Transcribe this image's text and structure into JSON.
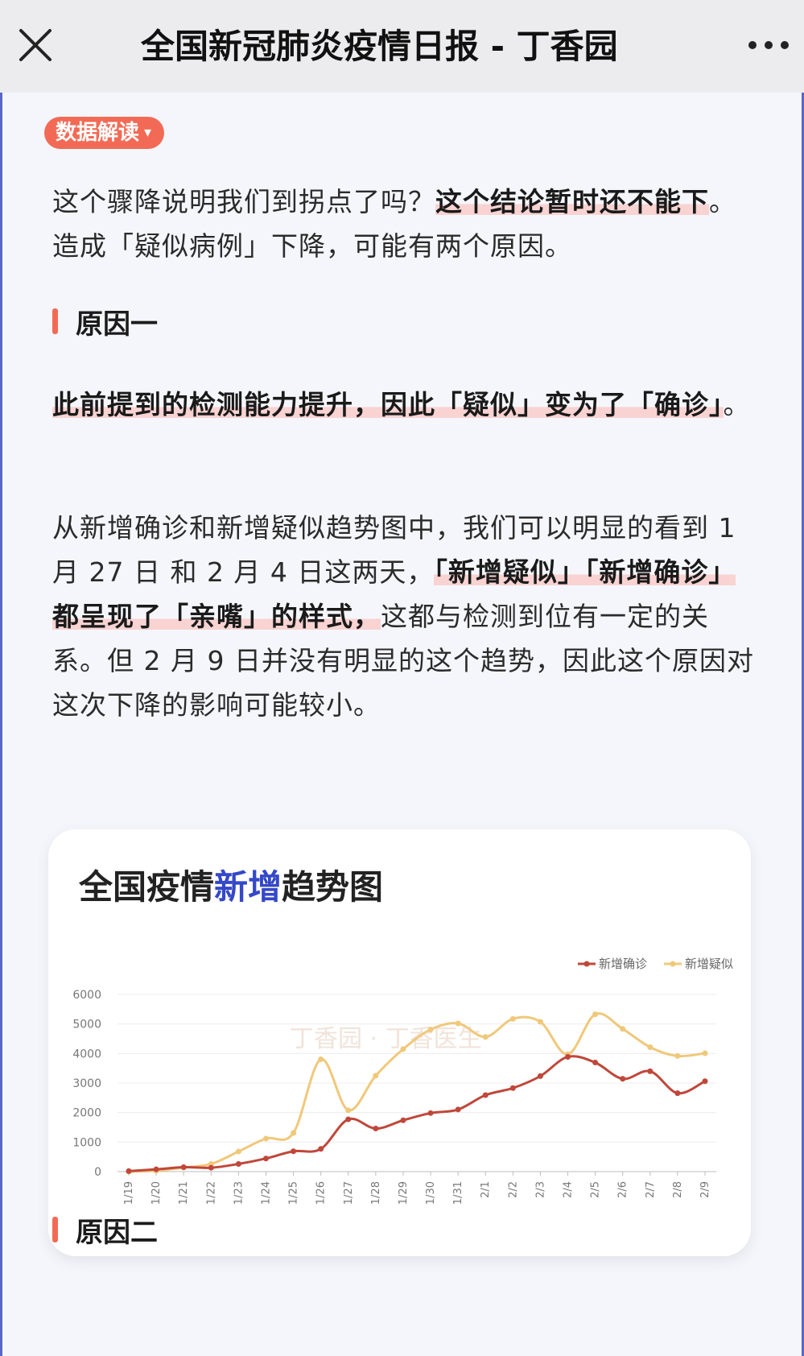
{
  "topbar": {
    "title": "全国新冠肺炎疫情日报 - 丁香园",
    "close_icon": "close-icon",
    "more_icon": "more-icon"
  },
  "article": {
    "tag": "数据解读",
    "p1": {
      "normal1": "这个骤降说明我们到拐点了吗？",
      "bold1": "这个结论暂时还不能下",
      "normal2": "。造成「疑似病例」下降，可能有两个原因。"
    },
    "section1": "原因一",
    "p2": {
      "bold1": "此前提到的检测能力提升，因此「疑似」变为了「确诊」",
      "normal1": "。"
    },
    "p3": {
      "normal1": "从新增确诊和新增疑似趋势图中，我们可以明显的看到 1 月 27 日 和 2 月 4 日这两天，",
      "bold1": "「新增疑似」「新增确诊」都呈现了「亲嘴」的样式，",
      "normal2": "这都与检测到位有一定的关系。但 2 月 9 日并没有明显的这个趋势，因此这个原因对这次下降的影响可能较小。"
    },
    "section2": "原因二"
  },
  "chart": {
    "title_part1": "全国疫情",
    "title_accent": "新增",
    "title_part2": "趋势图",
    "watermark": "丁香园 · 丁香医生"
  },
  "colors": {
    "accent": "#f26a55",
    "highlight": "#f8d3d2",
    "confirmed": "#c0473a",
    "suspected": "#f0c87a",
    "title_accent": "#3448c8"
  },
  "chart_data": {
    "type": "line",
    "title": "全国疫情新增趋势图",
    "categories": [
      "1/19",
      "1/20",
      "1/21",
      "1/22",
      "1/23",
      "1/24",
      "1/25",
      "1/26",
      "1/27",
      "1/28",
      "1/29",
      "1/30",
      "1/31",
      "2/1",
      "2/2",
      "2/3",
      "2/4",
      "2/5",
      "2/6",
      "2/7",
      "2/8",
      "2/9"
    ],
    "series": [
      {
        "name": "新增确诊",
        "color": "#c0473a",
        "values": [
          17,
          77,
          149,
          131,
          259,
          444,
          688,
          769,
          1771,
          1459,
          1737,
          1982,
          2102,
          2590,
          2829,
          3235,
          3887,
          3694,
          3143,
          3399,
          2656,
          3062
        ]
      },
      {
        "name": "新增疑似",
        "color": "#f0c87a",
        "values": [
          0,
          27,
          137,
          257,
          680,
          1118,
          1309,
          3806,
          2077,
          3248,
          4148,
          4812,
          5019,
          4562,
          5173,
          5072,
          3971,
          5328,
          4833,
          4214,
          3916,
          4008
        ]
      }
    ],
    "yticks": [
      0,
      1000,
      2000,
      3000,
      4000,
      5000,
      6000
    ],
    "ylim": [
      0,
      6000
    ],
    "legend_position": "top-right",
    "grid": true
  }
}
